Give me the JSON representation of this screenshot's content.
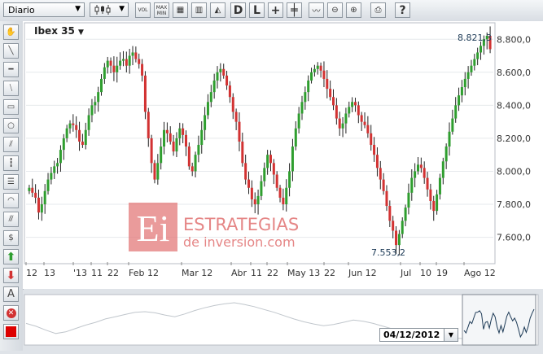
{
  "toolbar": {
    "period_value": "Diario",
    "chart_type_icon": "candlestick-icon",
    "vol_label": "VOL",
    "maxmin_label": "MAX MIN",
    "d_label": "D",
    "l_label": "L"
  },
  "chart": {
    "instrument": "Ibex 35",
    "watermark_line1": "ESTRATEGIAS",
    "watermark_line2": "de inversion.com",
    "watermark_logo": "Ei",
    "max_label": "8.821,3",
    "min_label": "7.553,2",
    "y_ticks": [
      "8.800,0",
      "8.600,0",
      "8.400,0",
      "8.200,0",
      "8.000,0",
      "7.800,0",
      "7.600,0"
    ],
    "x_ticks": [
      "12",
      "13",
      "'13",
      "11",
      "22",
      "Feb 12",
      "Mar 12",
      "Abr",
      "11",
      "22",
      "May 13",
      "22",
      "Jun 12",
      "Jul",
      "10",
      "19",
      "Ago 12"
    ],
    "colors": {
      "up": "#2f9e2f",
      "down": "#d23232",
      "watermark": "#e37a7a"
    }
  },
  "chart_data": {
    "type": "candlestick",
    "ylim": [
      7450,
      8890
    ],
    "series": [
      {
        "name": "Ibex 35",
        "values": [
          7900,
          7870,
          7840,
          7750,
          7800,
          7880,
          7950,
          7990,
          8030,
          8050,
          8130,
          8200,
          8260,
          8290,
          8280,
          8250,
          8180,
          8160,
          8250,
          8340,
          8400,
          8420,
          8480,
          8560,
          8630,
          8670,
          8640,
          8600,
          8640,
          8670,
          8680,
          8640,
          8700,
          8720,
          8680,
          8650,
          8580,
          8360,
          8200,
          8050,
          7950,
          8050,
          8150,
          8250,
          8230,
          8180,
          8120,
          8200,
          8260,
          8220,
          8150,
          8030,
          8000,
          8100,
          8160,
          8250,
          8340,
          8420,
          8480,
          8550,
          8600,
          8620,
          8580,
          8520,
          8450,
          8360,
          8300,
          8180,
          8050,
          7950,
          7900,
          7830,
          7800,
          7850,
          7940,
          8020,
          8100,
          8050,
          7980,
          7900,
          7840,
          7800,
          7900,
          8000,
          8150,
          8260,
          8350,
          8420,
          8480,
          8550,
          8600,
          8620,
          8640,
          8610,
          8560,
          8500,
          8450,
          8400,
          8320,
          8260,
          8290,
          8350,
          8390,
          8420,
          8400,
          8340,
          8300,
          8280,
          8230,
          8160,
          8100,
          8020,
          7950,
          7880,
          7790,
          7700,
          7640,
          7553,
          7620,
          7700,
          7780,
          7870,
          7960,
          8000,
          8040,
          8020,
          7960,
          7890,
          7820,
          7760,
          7860,
          7960,
          8060,
          8150,
          8240,
          8320,
          8400,
          8460,
          8510,
          8560,
          8600,
          8640,
          8680,
          8720,
          8760,
          8800,
          8821,
          8740
        ]
      }
    ],
    "max": 8821.3,
    "min": 7553.2
  },
  "navigator": {
    "date_value": "04/12/2012",
    "values": [
      8100,
      8050,
      7980,
      7920,
      7950,
      8010,
      8070,
      8120,
      8180,
      8220,
      8260,
      8300,
      8310,
      8290,
      8250,
      8220,
      8270,
      8330,
      8380,
      8420,
      8450,
      8470,
      8440,
      8400,
      8350,
      8300,
      8240,
      8180,
      8130,
      8090,
      8060,
      8080,
      8120,
      8160,
      8140,
      8100,
      8050,
      8000,
      7960,
      7930,
      7900,
      7880,
      7860,
      7840,
      7830
    ]
  }
}
